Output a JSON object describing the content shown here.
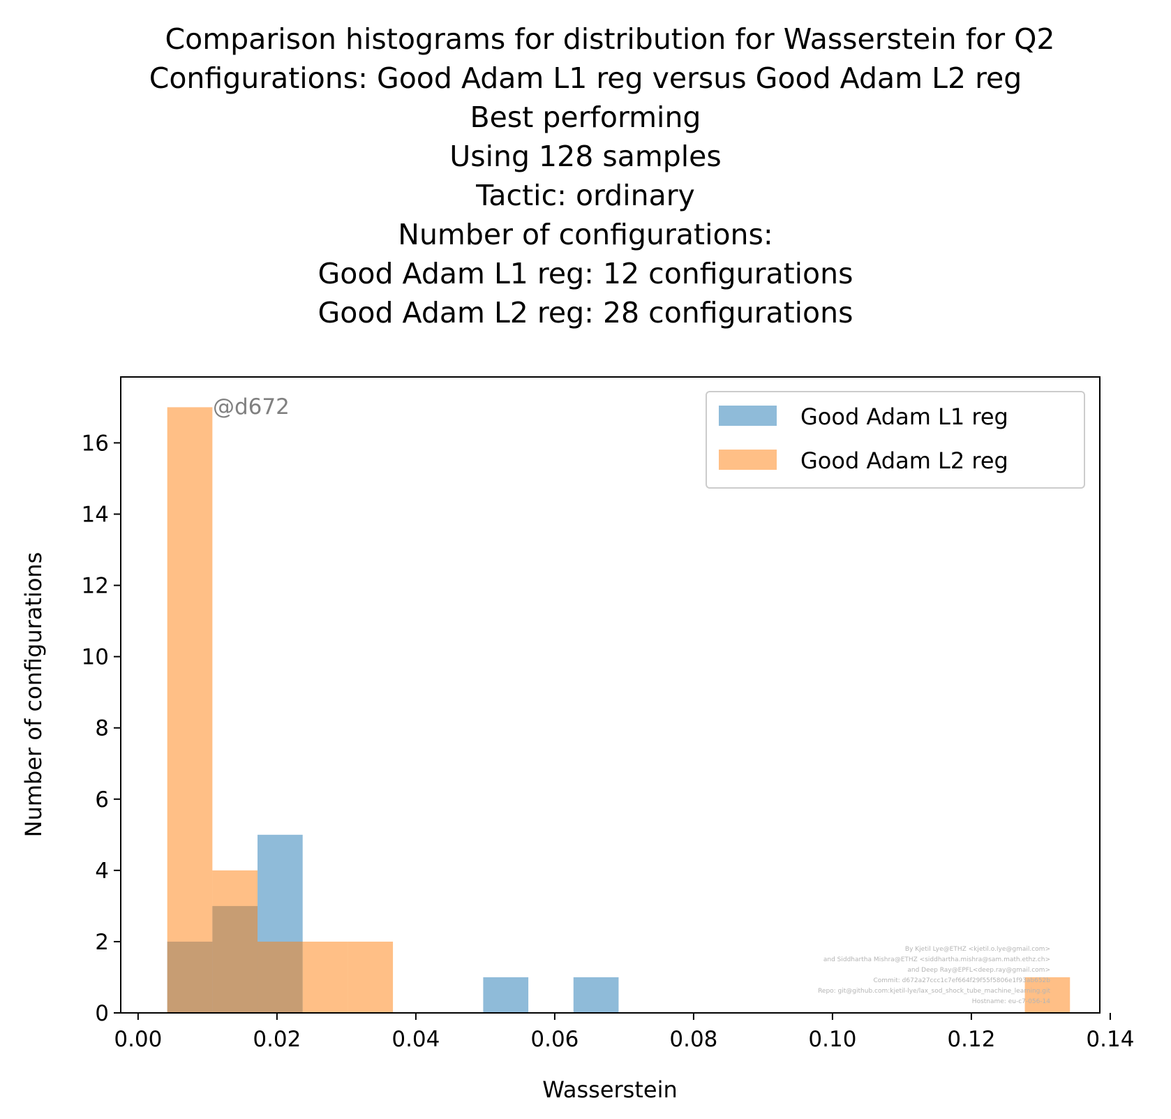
{
  "chart_data": {
    "type": "bar",
    "title_lines": [
      "Comparison histograms for distribution for Wasserstein for Q2",
      "Configurations: Good Adam L1 reg versus Good Adam L2 reg",
      "Best performing",
      "Using 128 samples",
      "Tactic: ordinary",
      "Number of configurations:",
      "Good Adam L1 reg: 12 configurations",
      "Good Adam L2 reg: 28 configurations"
    ],
    "xlabel": "Wasserstein",
    "ylabel": "Number of configurations",
    "xlim": [
      -0.0025,
      0.1385
    ],
    "ylim": [
      0,
      17.85
    ],
    "xticks": [
      0.0,
      0.02,
      0.04,
      0.06,
      0.08,
      0.1,
      0.12,
      0.14
    ],
    "xtick_labels": [
      "0.00",
      "0.02",
      "0.04",
      "0.06",
      "0.08",
      "0.10",
      "0.12",
      "0.14"
    ],
    "yticks": [
      0,
      2,
      4,
      6,
      8,
      10,
      12,
      14,
      16
    ],
    "ytick_labels": [
      "0",
      "2",
      "4",
      "6",
      "8",
      "10",
      "12",
      "14",
      "16"
    ],
    "legend_position": "top-right",
    "grid": false,
    "series": [
      {
        "name": "Good Adam L1 reg",
        "color": "#1f77b4",
        "opacity": 0.5,
        "bins": [
          {
            "x0": 0.0042,
            "x1": 0.0107,
            "count": 2
          },
          {
            "x0": 0.0107,
            "x1": 0.0172,
            "count": 3
          },
          {
            "x0": 0.0172,
            "x1": 0.0237,
            "count": 5
          },
          {
            "x0": 0.0237,
            "x1": 0.0302,
            "count": 0
          },
          {
            "x0": 0.0302,
            "x1": 0.0367,
            "count": 0
          },
          {
            "x0": 0.0367,
            "x1": 0.0432,
            "count": 0
          },
          {
            "x0": 0.0432,
            "x1": 0.0497,
            "count": 0
          },
          {
            "x0": 0.0497,
            "x1": 0.0562,
            "count": 1
          },
          {
            "x0": 0.0562,
            "x1": 0.0627,
            "count": 0
          },
          {
            "x0": 0.0627,
            "x1": 0.0692,
            "count": 1
          }
        ]
      },
      {
        "name": "Good Adam L2 reg",
        "color": "#ff7f0e",
        "opacity": 0.5,
        "bins": [
          {
            "x0": 0.0042,
            "x1": 0.0107,
            "count": 17
          },
          {
            "x0": 0.0107,
            "x1": 0.0172,
            "count": 4
          },
          {
            "x0": 0.0172,
            "x1": 0.0237,
            "count": 2
          },
          {
            "x0": 0.0237,
            "x1": 0.0302,
            "count": 2
          },
          {
            "x0": 0.0302,
            "x1": 0.0367,
            "count": 2
          },
          {
            "x0": 0.0367,
            "x1": 0.0432,
            "count": 0
          },
          {
            "x0": 0.0432,
            "x1": 0.0497,
            "count": 0
          },
          {
            "x0": 0.0497,
            "x1": 0.0562,
            "count": 0
          },
          {
            "x0": 0.0562,
            "x1": 0.0627,
            "count": 0
          },
          {
            "x0": 0.0627,
            "x1": 0.0692,
            "count": 0
          },
          {
            "x0": 0.0692,
            "x1": 0.0757,
            "count": 0
          },
          {
            "x0": 0.0757,
            "x1": 0.0822,
            "count": 0
          },
          {
            "x0": 0.0822,
            "x1": 0.0887,
            "count": 0
          },
          {
            "x0": 0.0887,
            "x1": 0.0952,
            "count": 0
          },
          {
            "x0": 0.0952,
            "x1": 0.1017,
            "count": 0
          },
          {
            "x0": 0.1017,
            "x1": 0.1082,
            "count": 0
          },
          {
            "x0": 0.1082,
            "x1": 0.1147,
            "count": 0
          },
          {
            "x0": 0.1147,
            "x1": 0.1212,
            "count": 0
          },
          {
            "x0": 0.1212,
            "x1": 0.1277,
            "count": 0
          },
          {
            "x0": 0.1277,
            "x1": 0.1342,
            "count": 1
          }
        ]
      }
    ],
    "annotation": "@d672",
    "credits": [
      "By Kjetil Lye@ETHZ <kjetil.o.lye@gmail.com>",
      "and Siddhartha Mishra@ETHZ <siddhartha.mishra@sam.math.ethz.ch>",
      "and Deep Ray@EPFL<deep.ray@gmail.com>",
      "Commit: d672a27ccc1c7ef664f29f55f5806e1f93ab652b",
      "Repo: git@github.com:kjetil-lye/lax_sod_shock_tube_machine_learning.git",
      "Hostname: eu-c7-056-14"
    ]
  }
}
